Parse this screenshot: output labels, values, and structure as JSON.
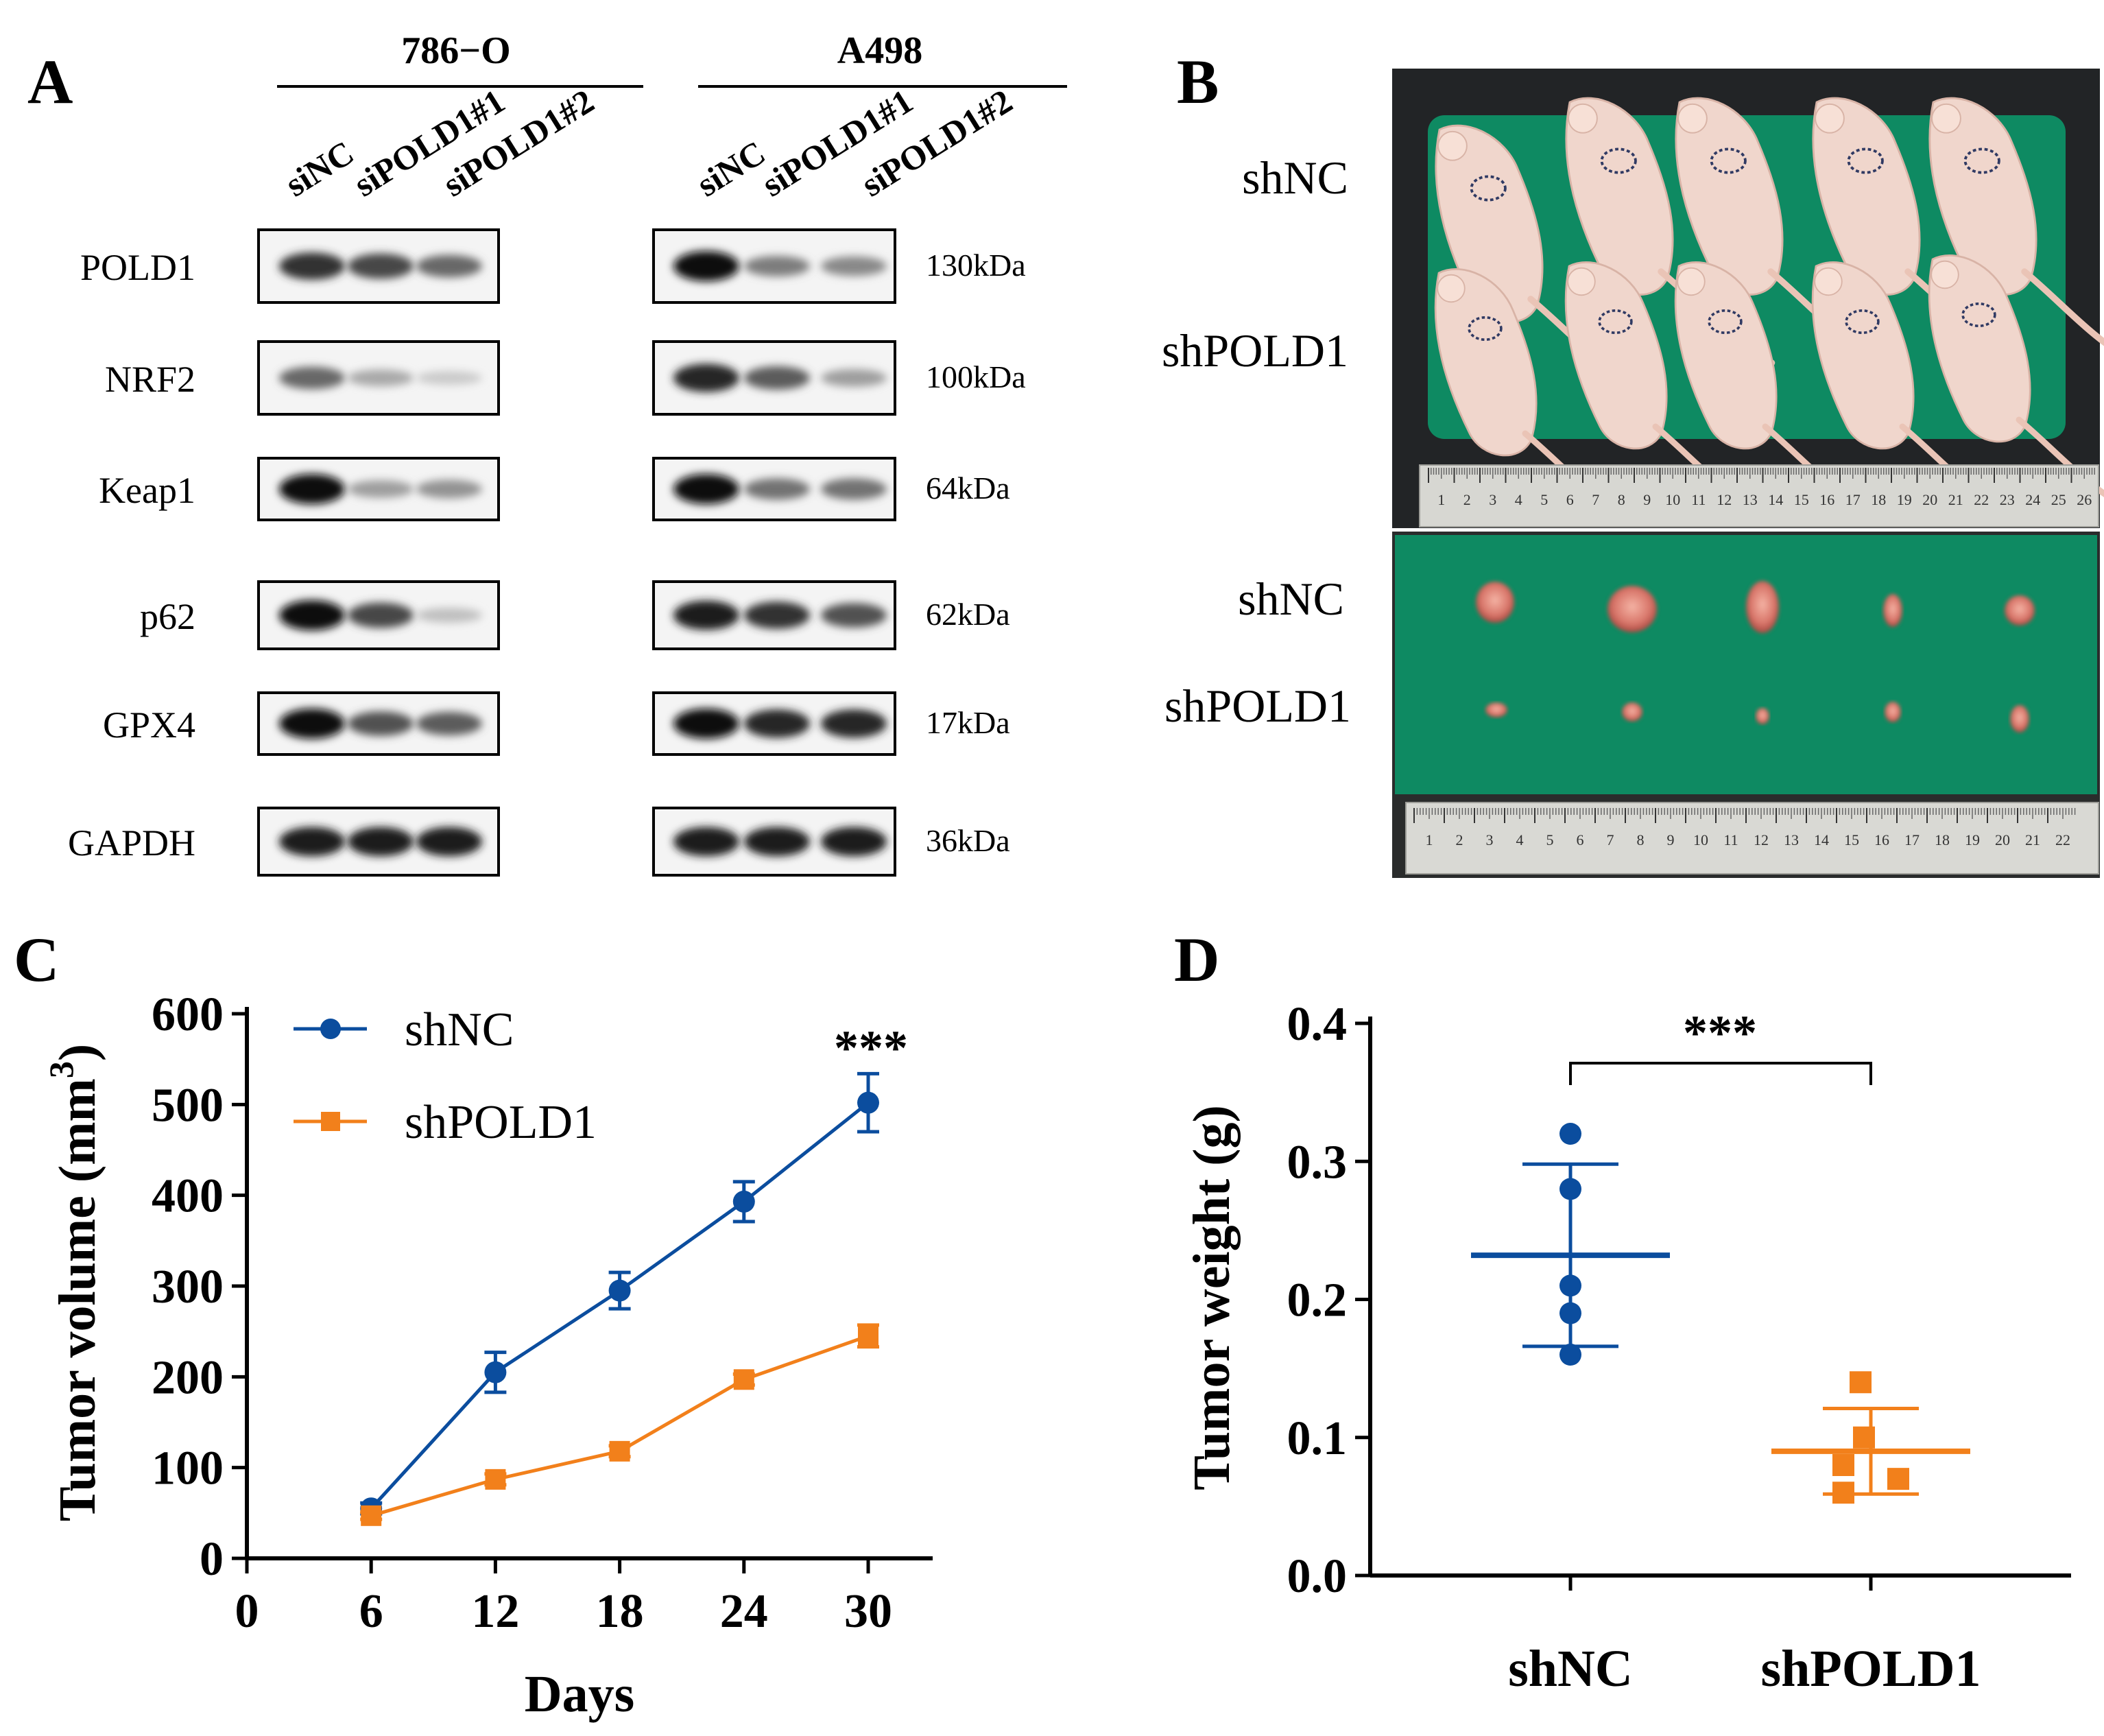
{
  "panels": {
    "a": {
      "letter": "A",
      "cell_lines": [
        {
          "name": "786−O",
          "lanes": [
            "siNC",
            "siPOLD1#1",
            "siPOLD1#2"
          ]
        },
        {
          "name": "A498",
          "lanes": [
            "siNC",
            "siPOLD1#1",
            "siPOLD1#2"
          ]
        }
      ],
      "proteins": [
        {
          "name": "POLD1",
          "kda": "130kDa",
          "band_intensity_786O": [
            0.85,
            0.75,
            0.6
          ],
          "band_intensity_A498": [
            1.0,
            0.5,
            0.45
          ]
        },
        {
          "name": "NRF2",
          "kda": "100kDa",
          "band_intensity_786O": [
            0.6,
            0.3,
            0.15
          ],
          "band_intensity_A498": [
            0.9,
            0.65,
            0.35
          ]
        },
        {
          "name": "Keap1",
          "kda": "64kDa",
          "band_intensity_786O": [
            1.0,
            0.35,
            0.4
          ],
          "band_intensity_A498": [
            1.0,
            0.55,
            0.55
          ]
        },
        {
          "name": "p62",
          "kda": "62kDa",
          "band_intensity_786O": [
            1.0,
            0.75,
            0.2
          ],
          "band_intensity_A498": [
            0.95,
            0.85,
            0.7
          ]
        },
        {
          "name": "GPX4",
          "kda": "17kDa",
          "band_intensity_786O": [
            1.0,
            0.7,
            0.65
          ],
          "band_intensity_A498": [
            1.0,
            0.9,
            0.9
          ]
        },
        {
          "name": "GAPDH",
          "kda": "36kDa",
          "band_intensity_786O": [
            0.95,
            0.95,
            0.95
          ],
          "band_intensity_A498": [
            0.95,
            0.95,
            0.95
          ]
        }
      ]
    },
    "b": {
      "letter": "B",
      "photo_labels": [
        "shNC",
        "shPOLD1",
        "shNC",
        "shPOLD1"
      ],
      "ruler_top": [
        "1",
        "2",
        "3",
        "4",
        "5",
        "6",
        "7",
        "8",
        "9",
        "10",
        "11",
        "12",
        "13",
        "14",
        "15",
        "16",
        "17",
        "18",
        "19",
        "20",
        "21",
        "22",
        "23",
        "24",
        "25",
        "26"
      ],
      "ruler_bottom": [
        "1",
        "2",
        "3",
        "4",
        "5",
        "6",
        "7",
        "8",
        "9",
        "10",
        "11",
        "12",
        "13",
        "14",
        "15",
        "16",
        "17",
        "18",
        "19",
        "20",
        "21",
        "22"
      ],
      "colors": {
        "board": "#0e8a62",
        "mouse": "#f0d6cc",
        "tumor": "#d9776b",
        "ruler": "#d7d7d2"
      }
    },
    "c": {
      "letter": "C",
      "significance": "***",
      "chart_data": {
        "type": "line",
        "xlabel": "Days",
        "ylabel_main": "Tumor volume (mm",
        "ylabel_sup": "3",
        "ylabel_end": ")",
        "x_ticks": [
          "0",
          "6",
          "12",
          "18",
          "24",
          "30"
        ],
        "y_ticks": [
          "0",
          "100",
          "200",
          "300",
          "400",
          "500",
          "600"
        ],
        "xlim": [
          0,
          30
        ],
        "ylim": [
          0,
          600
        ],
        "x": [
          6,
          12,
          18,
          24,
          30
        ],
        "series": [
          {
            "name": "shNC",
            "color": "#0b4d9e",
            "marker": "circle",
            "values": [
              55,
              205,
              295,
              393,
              502
            ],
            "errors": [
              6,
              22,
              20,
              22,
              32
            ]
          },
          {
            "name": "shPOLD1",
            "color": "#f2801b",
            "marker": "square",
            "values": [
              47,
              87,
              118,
              197,
              245
            ],
            "errors": [
              4,
              6,
              6,
              6,
              12
            ]
          }
        ]
      }
    },
    "d": {
      "letter": "D",
      "significance": "***",
      "chart_data": {
        "type": "scatter",
        "ylabel": "Tumor weight (g)",
        "categories": [
          "shNC",
          "shPOLD1"
        ],
        "y_ticks": [
          "0.0",
          "0.1",
          "0.2",
          "0.3",
          "0.4"
        ],
        "ylim": [
          0,
          0.4
        ],
        "series": [
          {
            "name": "shNC",
            "color": "#0b4d9e",
            "marker": "circle",
            "points": [
              0.32,
              0.28,
              0.21,
              0.19,
              0.16
            ],
            "mean": 0.232,
            "sd": 0.066
          },
          {
            "name": "shPOLD1",
            "color": "#f2801b",
            "marker": "square",
            "points": [
              0.14,
              0.1,
              0.08,
              0.07,
              0.06
            ],
            "mean": 0.09,
            "sd": 0.031
          }
        ]
      }
    }
  }
}
